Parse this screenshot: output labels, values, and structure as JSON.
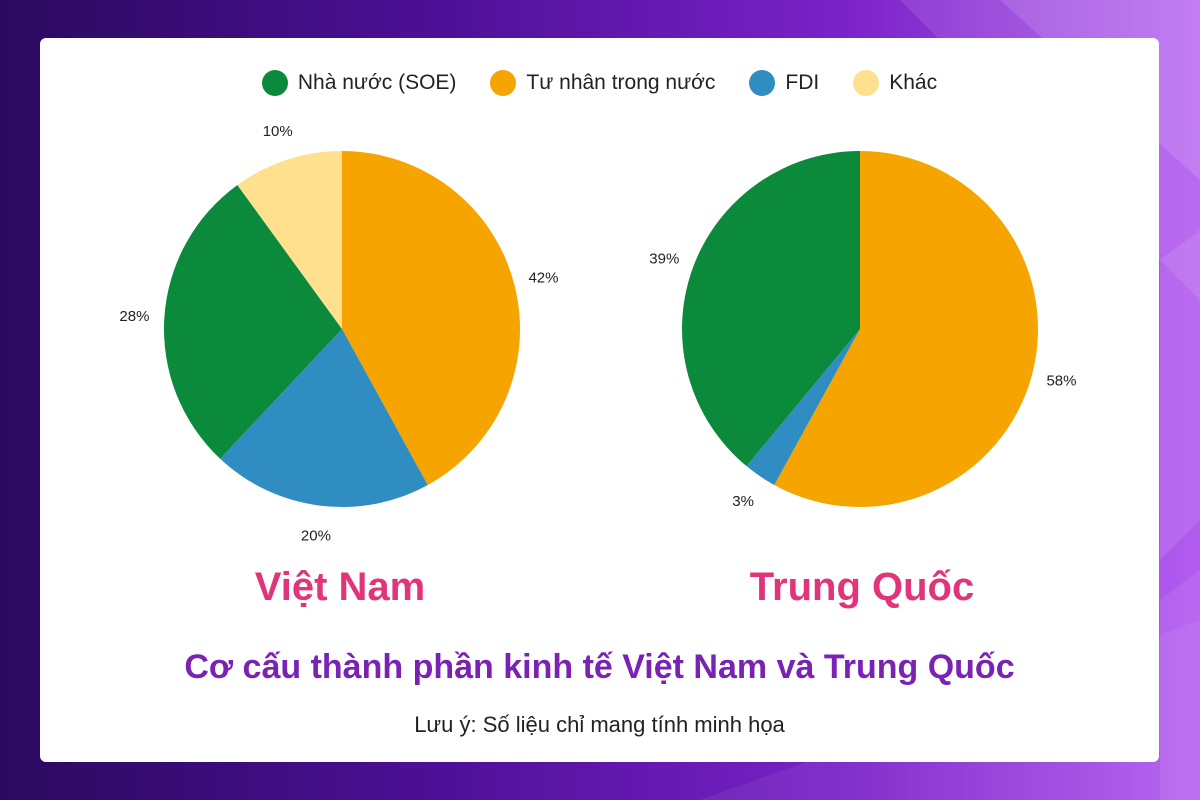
{
  "colors": {
    "soe": "#0a8a3a",
    "private": "#f6a500",
    "fdi": "#2f8dc2",
    "other": "#ffe08f"
  },
  "legend": [
    {
      "label": "Nhà nước (SOE)",
      "color": "#0a8a3a"
    },
    {
      "label": "Tư nhân trong nước",
      "color": "#f6a500"
    },
    {
      "label": "FDI",
      "color": "#2f8dc2"
    },
    {
      "label": "Khác",
      "color": "#ffe08f"
    }
  ],
  "chart_data": [
    {
      "type": "pie",
      "title": "Việt Nam",
      "slices": [
        {
          "name": "Tư nhân trong nước",
          "value": 42,
          "label": "42%",
          "color": "#f6a500"
        },
        {
          "name": "FDI",
          "value": 20,
          "label": "20%",
          "color": "#2f8dc2"
        },
        {
          "name": "Nhà nước (SOE)",
          "value": 28,
          "label": "28%",
          "color": "#0a8a3a"
        },
        {
          "name": "Khác",
          "value": 10,
          "label": "10%",
          "color": "#ffe08f"
        }
      ]
    },
    {
      "type": "pie",
      "title": "Trung Quốc",
      "slices": [
        {
          "name": "Tư nhân trong nước",
          "value": 58,
          "label": "58%",
          "color": "#f6a500"
        },
        {
          "name": "FDI",
          "value": 3,
          "label": "3%",
          "color": "#2f8dc2"
        },
        {
          "name": "Nhà nước (SOE)",
          "value": 39,
          "label": "39%",
          "color": "#0a8a3a"
        }
      ]
    }
  ],
  "main_title": "Cơ cấu thành phần kinh tế Việt Nam và Trung Quốc",
  "note": "Lưu ý: Số liệu chỉ mang tính minh họa"
}
